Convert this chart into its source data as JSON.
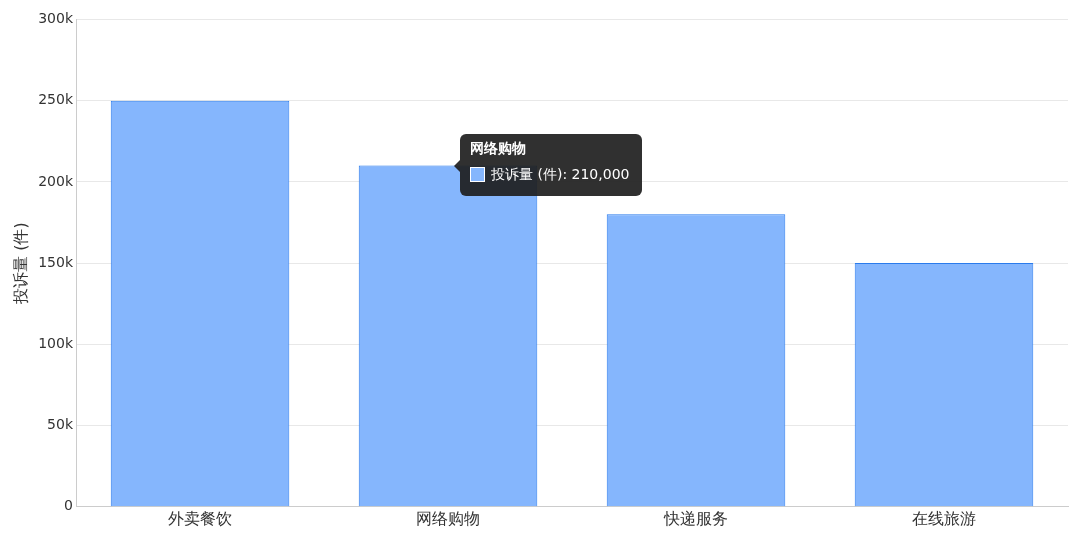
{
  "chart_data": {
    "type": "bar",
    "ylabel": "投诉量 (件)",
    "categories": [
      "外卖餐饮",
      "网络购物",
      "快递服务",
      "在线旅游"
    ],
    "values": [
      250000,
      210000,
      180000,
      150000
    ],
    "color": "#85b6fd",
    "ylim": [
      0,
      300000
    ],
    "yticks": [
      0,
      {
        "value": 50000,
        "label": "50k"
      },
      {
        "value": 100000,
        "label": "100k"
      },
      {
        "value": 150000,
        "label": "150k"
      },
      {
        "value": 200000,
        "label": "200k"
      },
      {
        "value": 250000,
        "label": "250k"
      },
      {
        "value": 300000,
        "label": "300k"
      }
    ],
    "grid": "y",
    "legend": false,
    "annotations": [
      {
        "text": "网络购物",
        "x": "网络购物",
        "y": 210000
      },
      "投诉量 (件): 210,000"
    ]
  }
}
